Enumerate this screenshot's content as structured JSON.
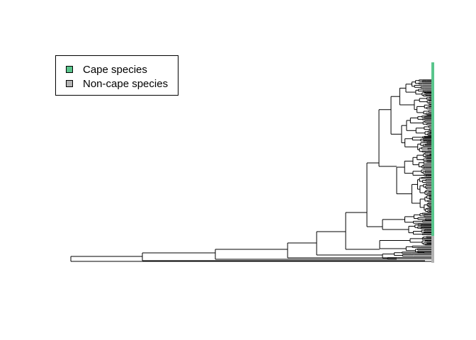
{
  "diagram": {
    "type": "phylogenetic-tree",
    "orientation": "right",
    "legend": {
      "placement": "top-left",
      "items": [
        {
          "label": "Cape species",
          "color": "#5ac58c"
        },
        {
          "label": "Non-cape species",
          "color": "#b3b3b3"
        }
      ]
    },
    "tip_bar_colors": {
      "cape": "#5ac58c",
      "noncape": "#b3b3b3"
    },
    "branch_color": "#000000"
  }
}
